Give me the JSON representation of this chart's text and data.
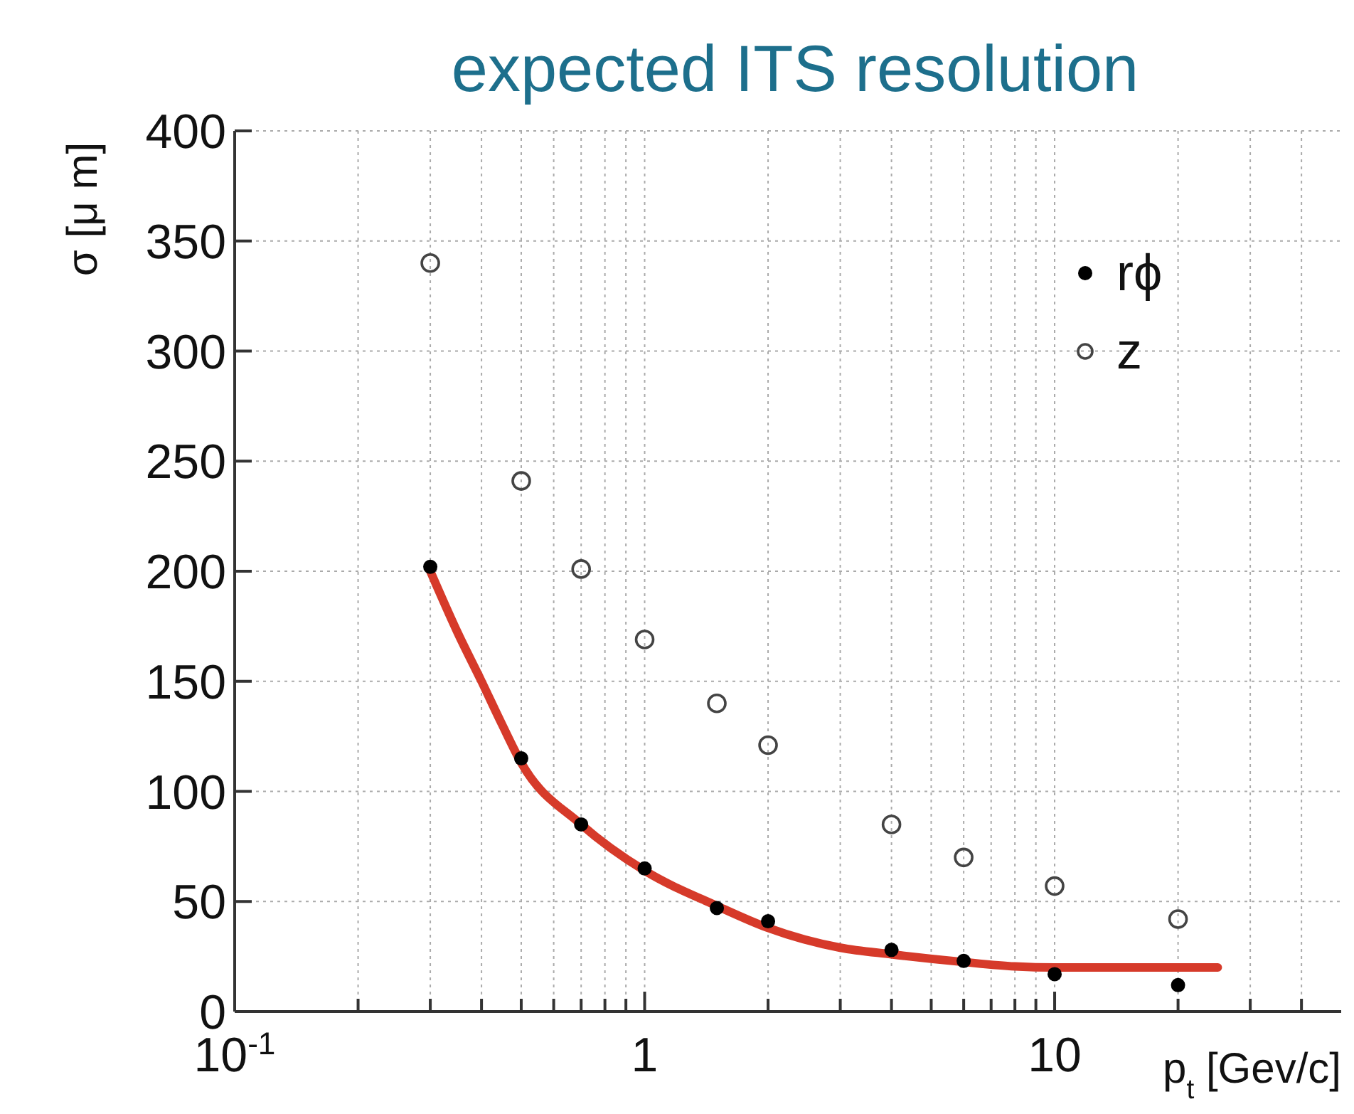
{
  "chart_data": {
    "type": "scatter",
    "title": "expected ITS resolution",
    "xlabel": "p$_{t}$ [Gev/c]",
    "ylabel": "σ [μ m]",
    "log": "x",
    "xlim": [
      0.1,
      50
    ],
    "ylim": [
      0,
      400
    ],
    "xticks": [
      {
        "value": 0.1,
        "label": "10$^{-1}$"
      },
      {
        "value": 0.2,
        "label": null
      },
      {
        "value": 0.3,
        "label": null
      },
      {
        "value": 0.4,
        "label": null
      },
      {
        "value": 0.5,
        "label": null
      },
      {
        "value": 0.6,
        "label": null
      },
      {
        "value": 0.7,
        "label": null
      },
      {
        "value": 0.8,
        "label": null
      },
      {
        "value": 0.9,
        "label": null
      },
      1,
      {
        "value": 2,
        "label": null
      },
      {
        "value": 3,
        "label": null
      },
      {
        "value": 4,
        "label": null
      },
      {
        "value": 5,
        "label": null
      },
      {
        "value": 6,
        "label": null
      },
      {
        "value": 7,
        "label": null
      },
      {
        "value": 8,
        "label": null
      },
      {
        "value": 9,
        "label": null
      },
      10,
      {
        "value": 20,
        "label": null
      },
      {
        "value": 30,
        "label": null
      },
      {
        "value": 40,
        "label": null
      }
    ],
    "yticks": [
      0,
      50,
      100,
      150,
      200,
      250,
      300,
      350,
      400
    ],
    "grid": true,
    "legend": "top right",
    "series": [
      {
        "name": "rϕ",
        "color": "#000000",
        "marker": "circle",
        "x": [
          0.3,
          0.5,
          0.7,
          1,
          1.5,
          2,
          4,
          6,
          10,
          20
        ],
        "values": [
          202,
          115,
          85,
          65,
          47,
          41,
          28,
          23,
          17,
          12
        ]
      },
      {
        "name": "z",
        "color": "#444444",
        "marker": "open-circle",
        "x": [
          0.3,
          0.5,
          0.7,
          1,
          1.5,
          2,
          4,
          6,
          10,
          20
        ],
        "values": [
          340,
          241,
          201,
          169,
          140,
          121,
          85,
          70,
          57,
          42
        ]
      },
      {
        "type": "line",
        "color": "#d63a2a",
        "x": [
          0.3,
          0.35,
          0.4,
          0.45,
          0.5,
          0.7,
          1,
          1.5,
          2,
          3,
          4,
          6,
          8,
          10,
          15,
          25
        ],
        "values": [
          200,
          172,
          150,
          130,
          113,
          85,
          64,
          48,
          38,
          29,
          26,
          22.5,
          20.5,
          20,
          20,
          20
        ]
      }
    ]
  }
}
